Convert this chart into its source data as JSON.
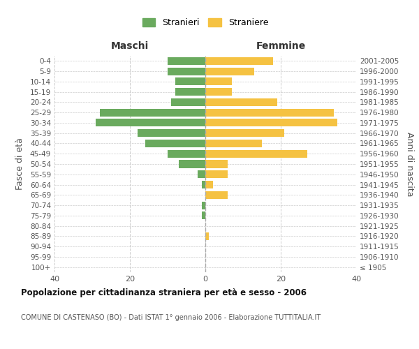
{
  "age_groups": [
    "100+",
    "95-99",
    "90-94",
    "85-89",
    "80-84",
    "75-79",
    "70-74",
    "65-69",
    "60-64",
    "55-59",
    "50-54",
    "45-49",
    "40-44",
    "35-39",
    "30-34",
    "25-29",
    "20-24",
    "15-19",
    "10-14",
    "5-9",
    "0-4"
  ],
  "birth_years": [
    "≤ 1905",
    "1906-1910",
    "1911-1915",
    "1916-1920",
    "1921-1925",
    "1926-1930",
    "1931-1935",
    "1936-1940",
    "1941-1945",
    "1946-1950",
    "1951-1955",
    "1956-1960",
    "1961-1965",
    "1966-1970",
    "1971-1975",
    "1976-1980",
    "1981-1985",
    "1986-1990",
    "1991-1995",
    "1996-2000",
    "2001-2005"
  ],
  "males": [
    0,
    0,
    0,
    0,
    0,
    1,
    1,
    0,
    1,
    2,
    7,
    10,
    16,
    18,
    29,
    28,
    9,
    8,
    8,
    10,
    10
  ],
  "females": [
    0,
    0,
    0,
    1,
    0,
    0,
    0,
    6,
    2,
    6,
    6,
    27,
    15,
    21,
    35,
    34,
    19,
    7,
    7,
    13,
    18
  ],
  "male_color": "#6aaa5e",
  "female_color": "#f5c242",
  "grid_color": "#cccccc",
  "title": "Popolazione per cittadinanza straniera per età e sesso - 2006",
  "subtitle": "COMUNE DI CASTENASO (BO) - Dati ISTAT 1° gennaio 2006 - Elaborazione TUTTITALIA.IT",
  "left_header": "Maschi",
  "right_header": "Femmine",
  "ylabel_left": "Fasce di età",
  "ylabel_right": "Anni di nascita",
  "legend_male": "Stranieri",
  "legend_female": "Straniere",
  "xlim": 40,
  "bar_height": 0.75
}
